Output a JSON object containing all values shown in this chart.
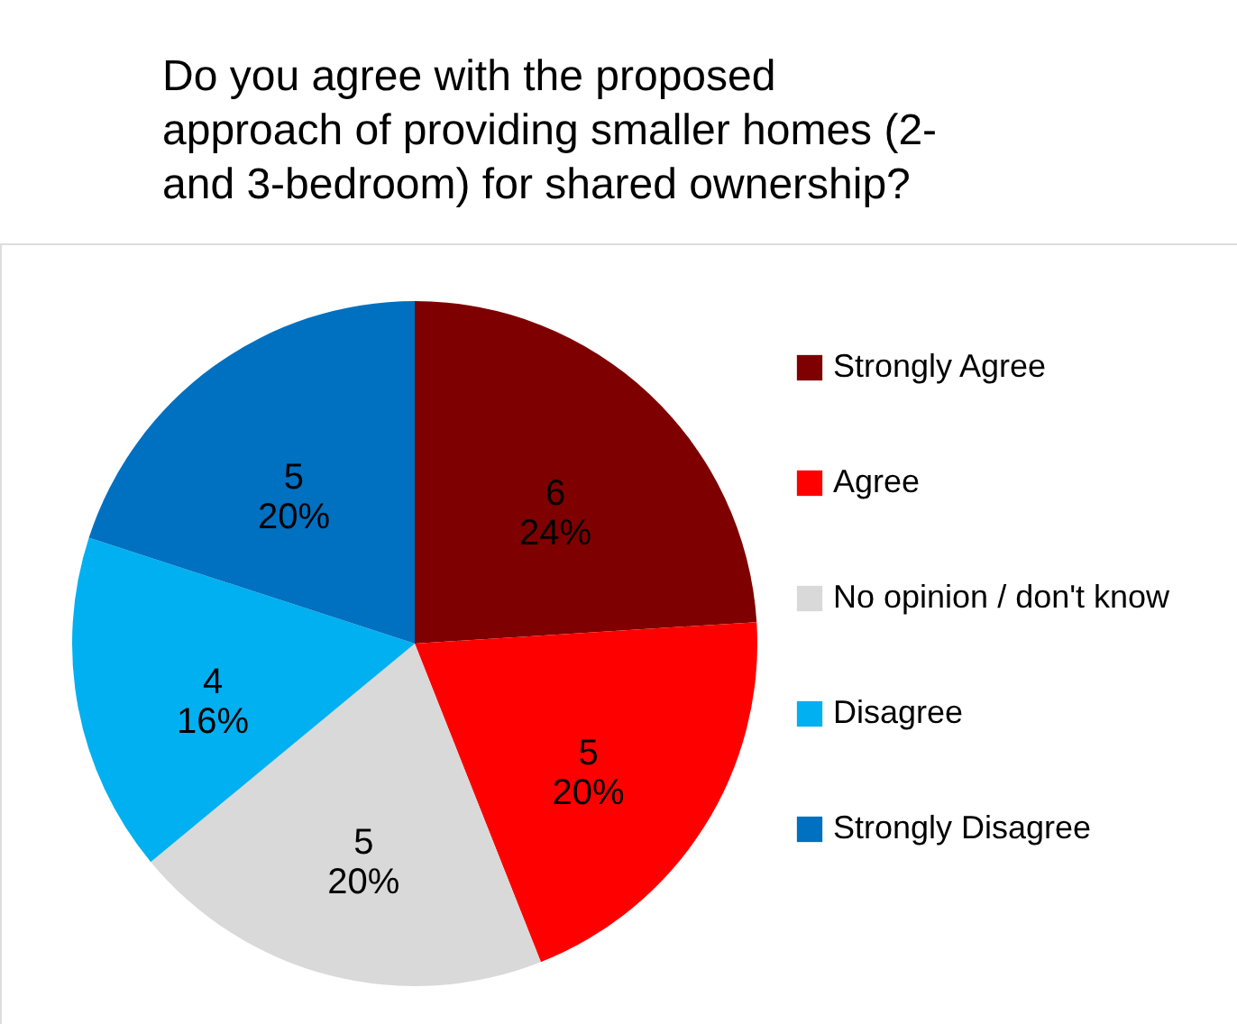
{
  "chart_data": {
    "type": "pie",
    "title": "Do you agree with the proposed\napproach of providing smaller homes (2-\nand 3-bedroom) for shared ownership?",
    "categories": [
      "Strongly Agree",
      "Agree",
      "No opinion / don't know",
      "Disagree",
      "Strongly Disagree"
    ],
    "values": [
      6,
      5,
      5,
      4,
      5
    ],
    "colors": [
      "#7f0000",
      "#ff0000",
      "#d9d9d9",
      "#00b0f0",
      "#0070c0"
    ],
    "value_labels": [
      "6\n24%",
      "5\n20%",
      "5\n20%",
      "4\n16%",
      "5\n20%"
    ],
    "legend": "right"
  }
}
